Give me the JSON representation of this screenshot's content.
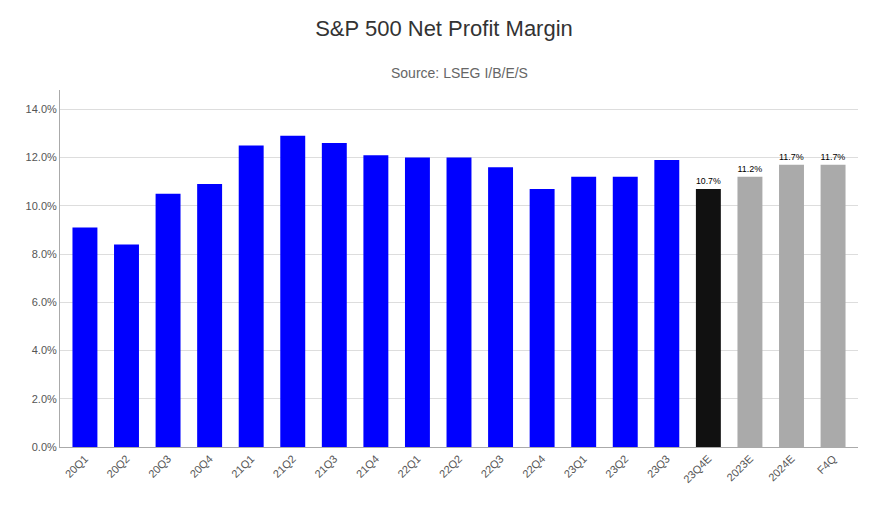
{
  "chart_data": {
    "type": "bar",
    "title": "S&P 500 Net Profit Margin",
    "subtitle": "Source: LSEG I/B/E/S",
    "categories": [
      "20Q1",
      "20Q2",
      "20Q3",
      "20Q4",
      "21Q1",
      "21Q2",
      "21Q3",
      "21Q4",
      "22Q1",
      "22Q2",
      "22Q3",
      "22Q4",
      "23Q1",
      "23Q2",
      "23Q3",
      "23Q4E",
      "2023E",
      "2024E",
      "F4Q"
    ],
    "values": [
      0.091,
      0.084,
      0.105,
      0.109,
      0.125,
      0.129,
      0.126,
      0.121,
      0.12,
      0.12,
      0.116,
      0.107,
      0.112,
      0.112,
      0.119,
      0.107,
      0.112,
      0.117,
      0.117
    ],
    "value_labels": [
      null,
      null,
      null,
      null,
      null,
      null,
      null,
      null,
      null,
      null,
      null,
      null,
      null,
      null,
      null,
      "10.7%",
      "11.2%",
      "11.7%",
      "11.7%"
    ],
    "colors": [
      "#0000FF",
      "#0000FF",
      "#0000FF",
      "#0000FF",
      "#0000FF",
      "#0000FF",
      "#0000FF",
      "#0000FF",
      "#0000FF",
      "#0000FF",
      "#0000FF",
      "#0000FF",
      "#0000FF",
      "#0000FF",
      "#0000FF",
      "#111111",
      "#AAAAAA",
      "#AAAAAA",
      "#AAAAAA"
    ],
    "ylim": [
      0,
      0.148
    ],
    "yticks": [
      {
        "value": 0.0,
        "label": "0.0%"
      },
      {
        "value": 0.02,
        "label": "2.0%"
      },
      {
        "value": 0.04,
        "label": "4.0%"
      },
      {
        "value": 0.06,
        "label": "6.0%"
      },
      {
        "value": 0.08,
        "label": "8.0%"
      },
      {
        "value": 0.1,
        "label": "10.0%"
      },
      {
        "value": 0.12,
        "label": "12.0%"
      },
      {
        "value": 0.14,
        "label": "14.0%"
      }
    ],
    "grid": true
  }
}
